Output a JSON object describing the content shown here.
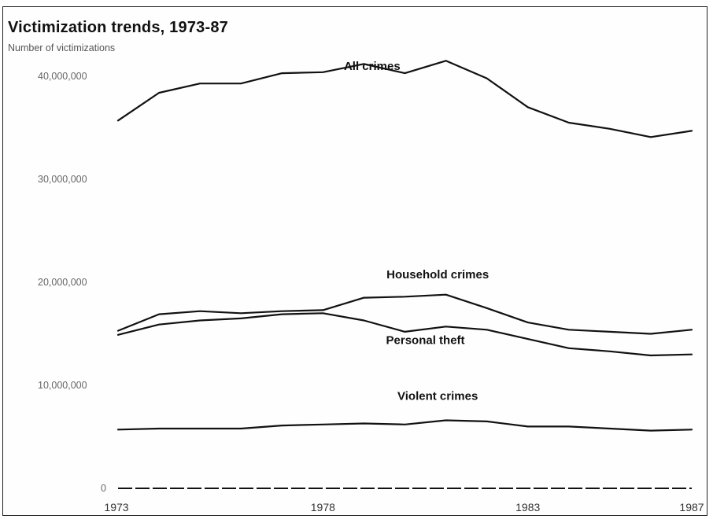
{
  "title": "Victimization trends, 1973-87",
  "subtitle": "Number of victimizations",
  "chart_data": {
    "type": "line",
    "title": "Victimization trends, 1973-87",
    "ylabel": "Number of victimizations",
    "xlabel": "",
    "x": [
      1973,
      1974,
      1975,
      1976,
      1977,
      1978,
      1979,
      1980,
      1981,
      1982,
      1983,
      1984,
      1985,
      1986,
      1987
    ],
    "x_ticks": [
      "1973",
      "1978",
      "1983",
      "1987"
    ],
    "y_ticks": [
      "0",
      "10,000,000",
      "20,000,000",
      "30,000,000",
      "40,000,000"
    ],
    "y_tick_values": [
      0,
      10000000,
      20000000,
      30000000,
      40000000
    ],
    "ylim": [
      0,
      41000000
    ],
    "grid": false,
    "series": [
      {
        "name": "All crimes",
        "values": [
          35700000,
          38400000,
          39300000,
          39300000,
          40300000,
          40400000,
          41200000,
          40300000,
          41500000,
          39800000,
          37000000,
          35500000,
          34900000,
          34100000,
          34700000
        ]
      },
      {
        "name": "Household crimes",
        "values": [
          15300000,
          16900000,
          17200000,
          17000000,
          17200000,
          17300000,
          18500000,
          18600000,
          18800000,
          17500000,
          16100000,
          15400000,
          15200000,
          15000000,
          15400000
        ]
      },
      {
        "name": "Personal theft",
        "values": [
          14900000,
          15900000,
          16300000,
          16500000,
          16900000,
          17000000,
          16300000,
          15200000,
          15700000,
          15400000,
          14500000,
          13600000,
          13300000,
          12900000,
          13000000
        ]
      },
      {
        "name": "Violent crimes",
        "values": [
          5700000,
          5800000,
          5800000,
          5800000,
          6100000,
          6200000,
          6300000,
          6200000,
          6600000,
          6500000,
          6000000,
          6000000,
          5800000,
          5600000,
          5700000
        ]
      }
    ]
  }
}
